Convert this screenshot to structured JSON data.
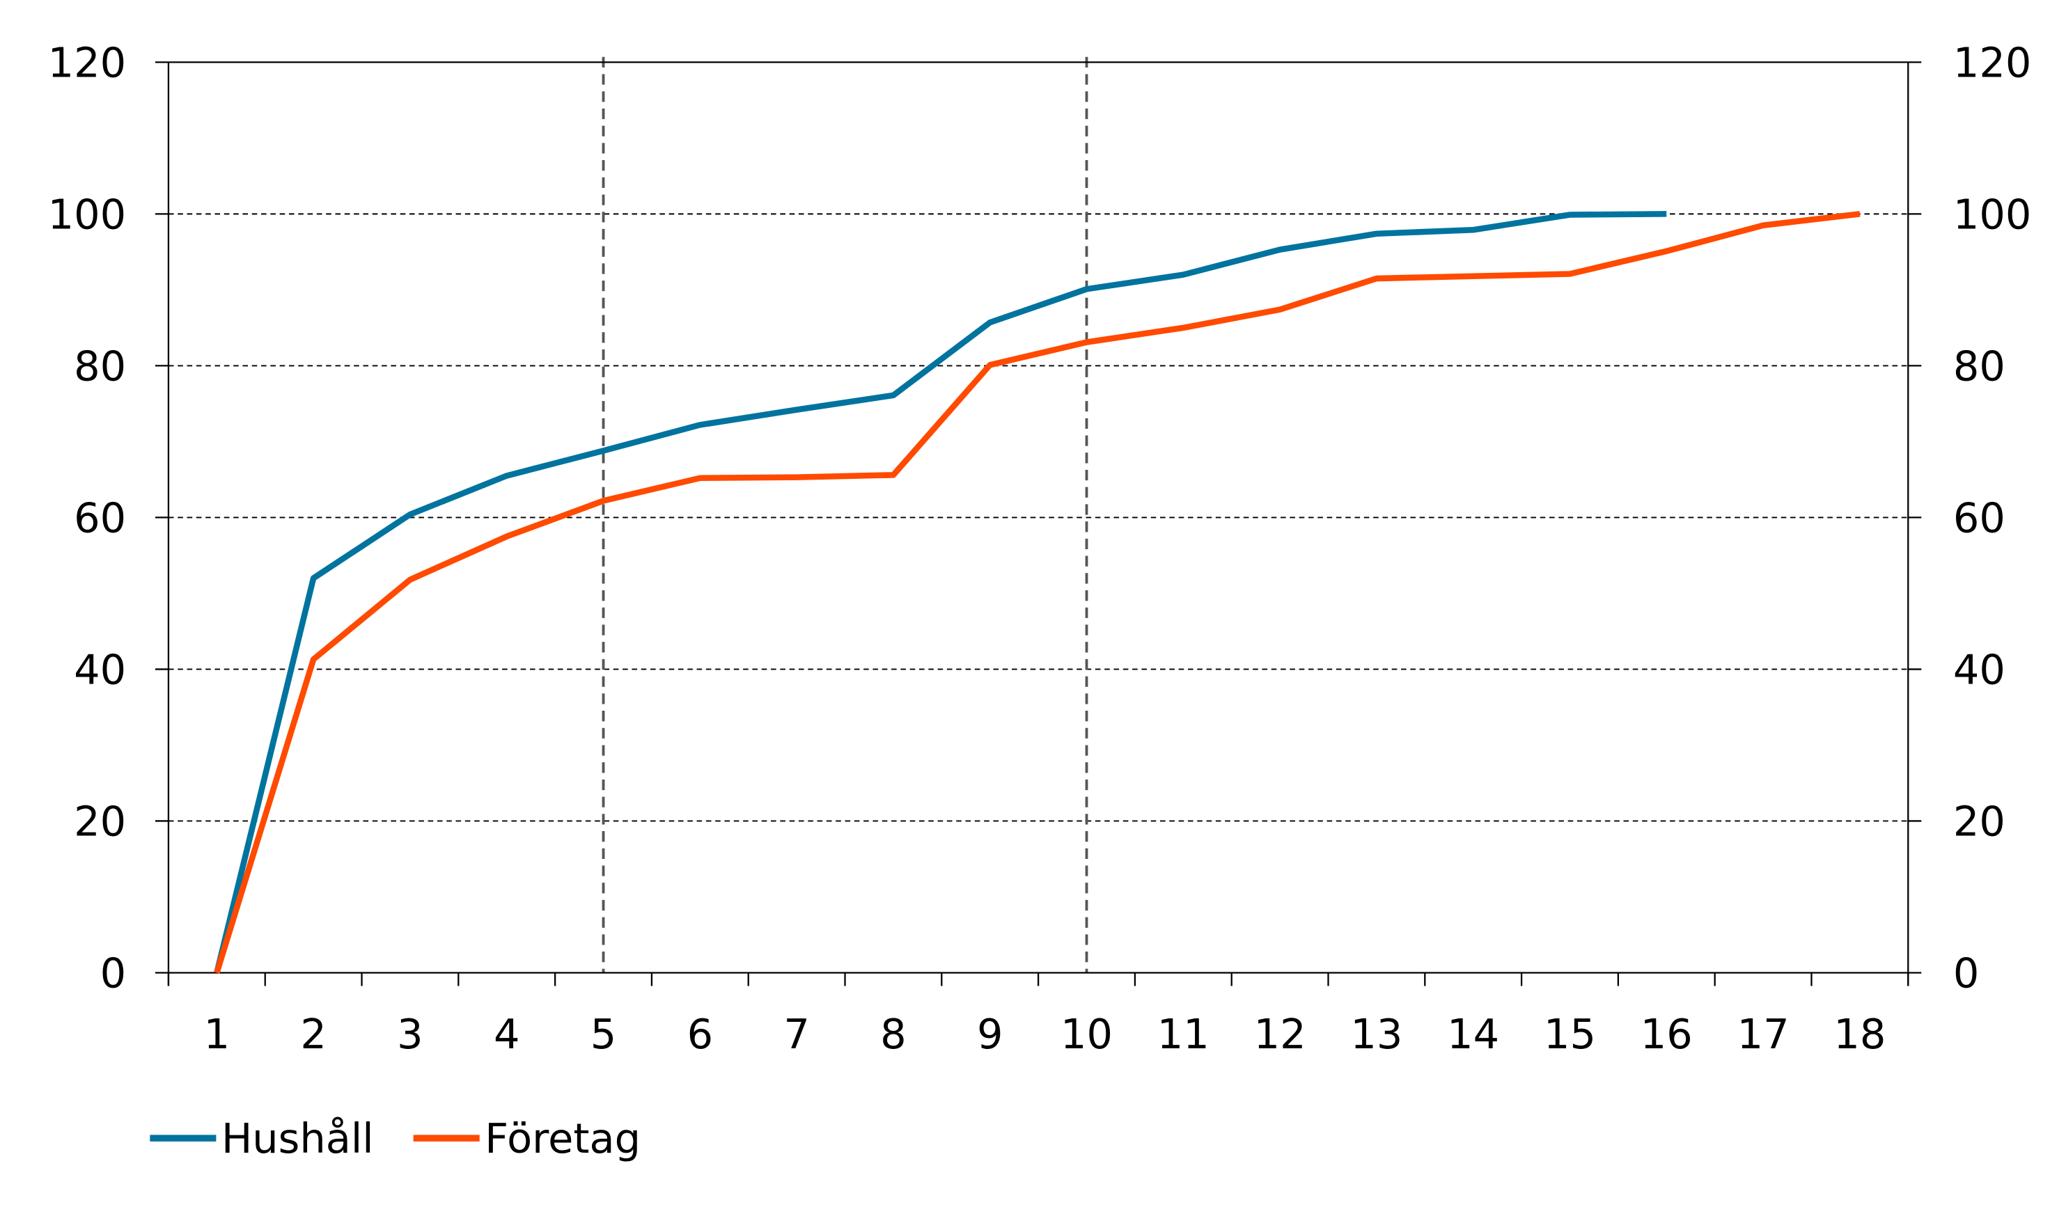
{
  "chart_data": {
    "type": "line",
    "categories": [
      "1",
      "2",
      "3",
      "4",
      "5",
      "6",
      "7",
      "8",
      "9",
      "10",
      "11",
      "12",
      "13",
      "14",
      "15",
      "16",
      "17",
      "18"
    ],
    "series": [
      {
        "name": "Hushåll",
        "color": "#00739e",
        "values": [
          0,
          52.0,
          60.4,
          65.5,
          68.8,
          72.2,
          74.2,
          76.1,
          85.7,
          90.1,
          92.0,
          95.3,
          97.4,
          97.9,
          99.9,
          100.0,
          null,
          null
        ]
      },
      {
        "name": "Företag",
        "color": "#ff4a00",
        "values": [
          0,
          41.3,
          51.8,
          57.5,
          62.2,
          65.2,
          65.3,
          65.6,
          80.1,
          83.1,
          85.0,
          87.4,
          91.5,
          91.8,
          92.1,
          95.1,
          98.5,
          100.0
        ]
      }
    ],
    "yticks": [
      "0",
      "20",
      "40",
      "60",
      "80",
      "100",
      "120"
    ],
    "ylim": [
      0,
      120
    ],
    "y2ticks": [
      "0",
      "20",
      "40",
      "60",
      "80",
      "100",
      "120"
    ],
    "grid": "horizontal dashed",
    "vertical_markers_at": [
      "5",
      "10"
    ],
    "legend": "bottom-left",
    "title": "",
    "xlabel": "",
    "ylabel": ""
  }
}
